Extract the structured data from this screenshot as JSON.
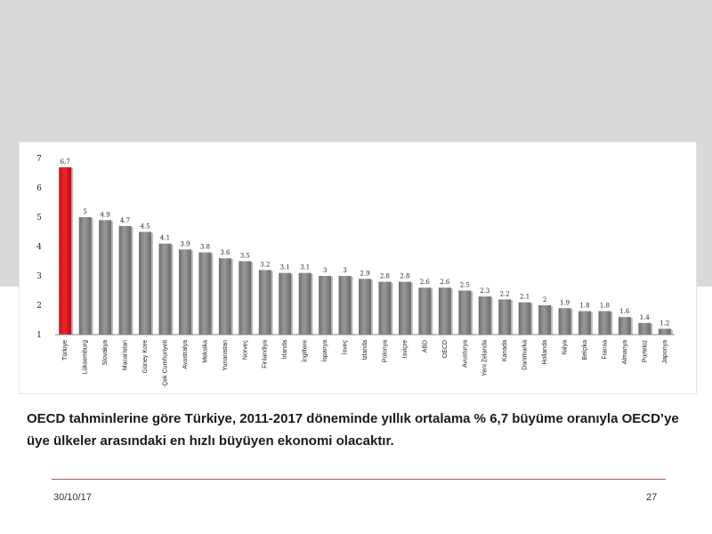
{
  "slide": {
    "caption": "OECD tahminlerine göre Türkiye, 2011-2017 döneminde yıllık ortalama % 6,7 büyüme oranıyla OECD’ye üye ülkeler arasındaki en hızlı büyüyen ekonomi olacaktır.",
    "date": "30/10/17",
    "page_number": "27"
  },
  "chart_data": {
    "type": "bar",
    "title": "",
    "xlabel": "",
    "ylabel": "",
    "ylim": [
      1,
      7
    ],
    "yticks": [
      "1",
      "2",
      "3",
      "4",
      "5",
      "6",
      "7"
    ],
    "categories": [
      "Türkiye",
      "Lüksemburg",
      "Slovakya",
      "Macaristan",
      "Güney Kore",
      "Çek Cumhuriyeti",
      "Avustralya",
      "Meksika",
      "Yunanistan",
      "Norveç",
      "Finlandiya",
      "İrlanda",
      "İngiltere",
      "İspanya",
      "İsveç",
      "İzlanda",
      "Polonya",
      "İsviçre",
      "ABD",
      "OECD",
      "Avusturya",
      "Yeni Zelanda",
      "Kanada",
      "Danimarka",
      "Hollanda",
      "İtalya",
      "Belçika",
      "Fransa",
      "Almanya",
      "Portekiz",
      "Japonya"
    ],
    "values": [
      6.7,
      5,
      4.9,
      4.7,
      4.5,
      4.1,
      3.9,
      3.8,
      3.6,
      3.5,
      3.2,
      3.1,
      3.1,
      3,
      3,
      2.9,
      2.8,
      2.8,
      2.6,
      2.6,
      2.5,
      2.3,
      2.2,
      2.1,
      2,
      1.9,
      1.8,
      1.8,
      1.6,
      1.4,
      1.2
    ],
    "value_labels": [
      "6,7",
      "5",
      "4.9",
      "4.7",
      "4.5",
      "4.1",
      "3.9",
      "3.8",
      "3.6",
      "3.5",
      "3.2",
      "3.1",
      "3.1",
      "3",
      "3",
      "2.9",
      "2.8",
      "2.8",
      "2.6",
      "2.6",
      "2.5",
      "2.3",
      "2.2",
      "2.1",
      "2",
      "1.9",
      "1.8",
      "1.8",
      "1.6",
      "1.4",
      "1.2"
    ],
    "colors": {
      "highlight": "#e8141c",
      "default": "#8c8c8c",
      "axis": "#888888"
    },
    "highlight_index": 0,
    "grid": false,
    "legend": "none"
  }
}
